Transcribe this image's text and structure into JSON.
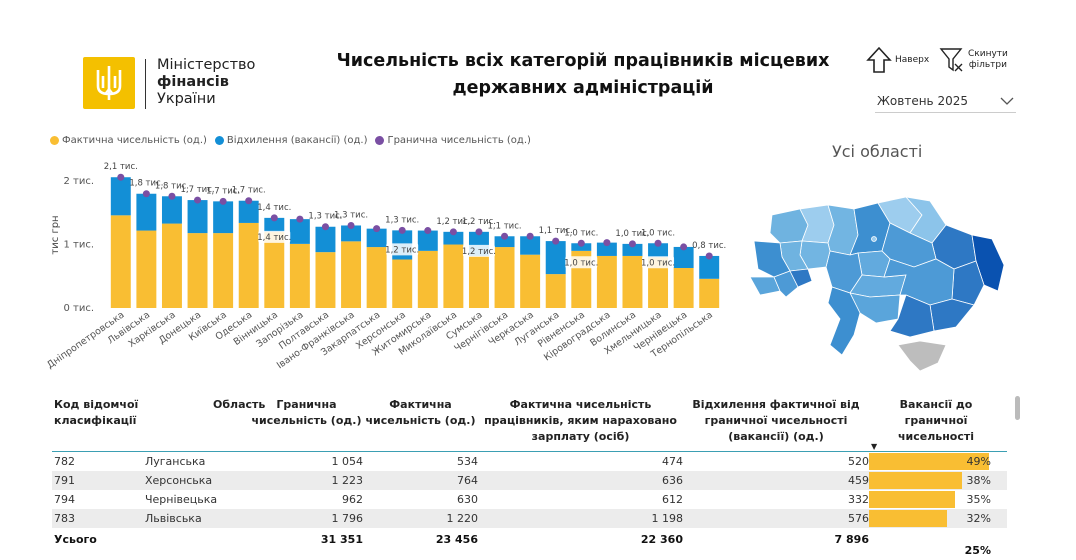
{
  "header": {
    "logo": {
      "line1": "Міністерство",
      "line2": "фінансів",
      "line3": "України",
      "icon": "trident-emblem-icon"
    },
    "title_line1": "Чисельність всіх категорій працівників місцевих",
    "title_line2": "державних адміністрацій",
    "up_button": "Наверх",
    "reset_button_line1": "Скинути",
    "reset_button_line2": "фільтри",
    "month_select": "Жовтень 2025"
  },
  "colors": {
    "actual": "#f9be33",
    "deviation": "#138fd6",
    "limit": "#7a4fa3",
    "accent_line": "#3b9fb3"
  },
  "legend": [
    {
      "label": "Фактична чисельність (од.)",
      "color": "#f9be33"
    },
    {
      "label": "Відхилення (вакансії) (од.)",
      "color": "#138fd6"
    },
    {
      "label": "Гранична чисельність (од.)",
      "color": "#7a4fa3"
    }
  ],
  "chart_data": {
    "type": "bar",
    "stacked": true,
    "ylabel": "тис грн",
    "yticks": [
      "0 тис.",
      "1 тис.",
      "2 тис."
    ],
    "ylim": [
      0,
      2300
    ],
    "categories": [
      "Дніпропетровська",
      "Львівська",
      "Харківська",
      "Донецька",
      "Київська",
      "Одеська",
      "Вінницька",
      "Запорізька",
      "Полтавська",
      "Івано-Франківська",
      "Закарпатська",
      "Херсонська",
      "Житомирська",
      "Миколаївська",
      "Сумська",
      "Чернігівська",
      "Черкаська",
      "Луганська",
      "Рівненська",
      "Кіровоградська",
      "Волинська",
      "Хмельницька",
      "Чернівецька",
      "Тернопільська"
    ],
    "series": [
      {
        "name": "Фактична чисельність (од.)",
        "values": [
          1460,
          1220,
          1330,
          1180,
          1180,
          1340,
          1200,
          1010,
          880,
          1050,
          960,
          764,
          900,
          1000,
          820,
          960,
          840,
          534,
          900,
          820,
          820,
          800,
          630,
          460
        ]
      },
      {
        "name": "Відхилення (вакансії) (од.)",
        "values": [
          600,
          580,
          430,
          520,
          500,
          350,
          220,
          390,
          400,
          250,
          290,
          459,
          320,
          200,
          380,
          170,
          290,
          520,
          120,
          210,
          190,
          220,
          332,
          360
        ]
      },
      {
        "name": "Гранична чисельність (од.)",
        "values": [
          2060,
          1800,
          1760,
          1700,
          1680,
          1690,
          1420,
          1400,
          1280,
          1300,
          1250,
          1223,
          1220,
          1200,
          1200,
          1130,
          1130,
          1054,
          1020,
          1030,
          1010,
          1020,
          962,
          820
        ]
      }
    ],
    "data_labels": [
      {
        "category": "Дніпропетровська",
        "text": "2,1 тис."
      },
      {
        "category": "Львівська",
        "text": "1,8 тис."
      },
      {
        "category": "Харківська",
        "text": "1,8 тис."
      },
      {
        "category": "Донецька",
        "text": "1,7 тис."
      },
      {
        "category": "Київська",
        "text": "1,7 тис."
      },
      {
        "category": "Одеська",
        "text": "1,7 тис."
      },
      {
        "category": "Вінницька",
        "text": "1,4 тис."
      },
      {
        "category": "Вінницька",
        "text": "1,4 тис."
      },
      {
        "category": "Полтавська",
        "text": "1,3 тис."
      },
      {
        "category": "Івано-Франківська",
        "text": "1,3 тис."
      },
      {
        "category": "Херсонська",
        "text": "1,3 тис."
      },
      {
        "category": "Херсонська",
        "text": "1,2 тис."
      },
      {
        "category": "Миколаївська",
        "text": "1,2 тис."
      },
      {
        "category": "Сумська",
        "text": "1,2 тис."
      },
      {
        "category": "Сумська",
        "text": "1,2 тис."
      },
      {
        "category": "Чернігівська",
        "text": "1,1 тис."
      },
      {
        "category": "Луганська",
        "text": "1,1 тис."
      },
      {
        "category": "Рівненська",
        "text": "1,0 тис."
      },
      {
        "category": "Рівненська",
        "text": "1,0 тис."
      },
      {
        "category": "Волинська",
        "text": "1,0 тис."
      },
      {
        "category": "Хмельницька",
        "text": "1,0 тис."
      },
      {
        "category": "Хмельницька",
        "text": "1,0 тис."
      },
      {
        "category": "Тернопільська",
        "text": "0,8 тис."
      }
    ]
  },
  "map": {
    "title": "Усі області"
  },
  "table": {
    "headers": [
      "Код відомчої класифікації",
      "Область",
      "Гранична чисельність (од.)",
      "Фактична чисельність (од.)",
      "Фактична чисельність працівників, яким нараховано зарплату (осіб)",
      "Відхилення фактичної від граничної чисельності (вакансії) (од.)",
      "Вакансії до граничної чисельності"
    ],
    "sort_indicator": "▼",
    "rows": [
      {
        "code": "782",
        "region": "Луганська",
        "limit": "1 054",
        "actual": "534",
        "paid": "474",
        "deviation": "520",
        "vacancy_pct": "49%",
        "vacancy_value": 49
      },
      {
        "code": "791",
        "region": "Херсонська",
        "limit": "1 223",
        "actual": "764",
        "paid": "636",
        "deviation": "459",
        "vacancy_pct": "38%",
        "vacancy_value": 38
      },
      {
        "code": "794",
        "region": "Чернівецька",
        "limit": "962",
        "actual": "630",
        "paid": "612",
        "deviation": "332",
        "vacancy_pct": "35%",
        "vacancy_value": 35
      },
      {
        "code": "783",
        "region": "Львівська",
        "limit": "1 796",
        "actual": "1 220",
        "paid": "1 198",
        "deviation": "576",
        "vacancy_pct": "32%",
        "vacancy_value": 32
      }
    ],
    "total": {
      "label": "Усього",
      "limit": "31 351",
      "actual": "23 456",
      "paid": "22 360",
      "deviation": "7 896",
      "vacancy_pct": "25%"
    }
  }
}
